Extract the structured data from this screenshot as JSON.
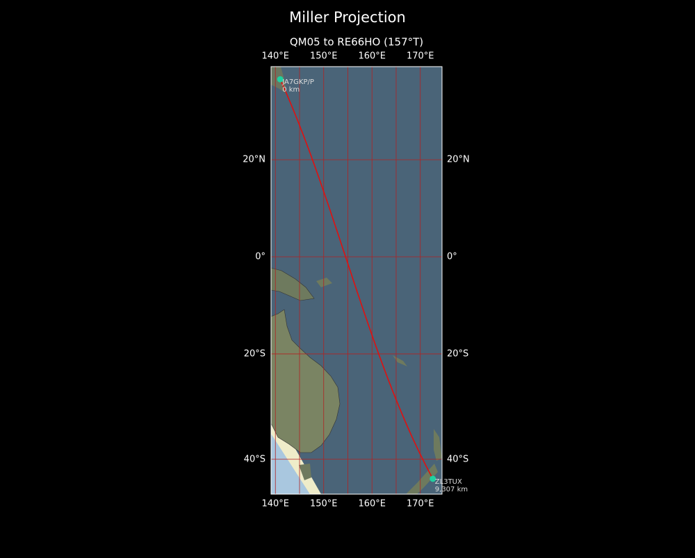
{
  "title": "Miller Projection",
  "subtitle": "QM05 to RE66HO (157°T)",
  "map": {
    "lonlim": [
      139.1,
      174.5
    ],
    "latlim": [
      -46.0,
      37.8
    ],
    "xticks": [
      {
        "value": 140,
        "label": "140°E"
      },
      {
        "value": 150,
        "label": "150°E"
      },
      {
        "value": 160,
        "label": "160°E"
      },
      {
        "value": 170,
        "label": "170°E"
      }
    ],
    "minor_xticks": [
      145,
      155,
      165
    ],
    "yticks": [
      {
        "value": 20,
        "label": "20°N"
      },
      {
        "value": 0,
        "label": "0°"
      },
      {
        "value": -20,
        "label": "20°S"
      },
      {
        "value": -40,
        "label": "40°S"
      }
    ],
    "grid_color": "#b22222",
    "path_color": "#e01010",
    "station_color": "#20d0a0"
  },
  "stations": [
    {
      "name": "JA7GKP/P",
      "distance": "0 km",
      "lat": 35.5,
      "lon": 141.0
    },
    {
      "name": "ZL3TUX",
      "distance": "9,307 km",
      "lat": -43.4,
      "lon": 172.6
    }
  ]
}
